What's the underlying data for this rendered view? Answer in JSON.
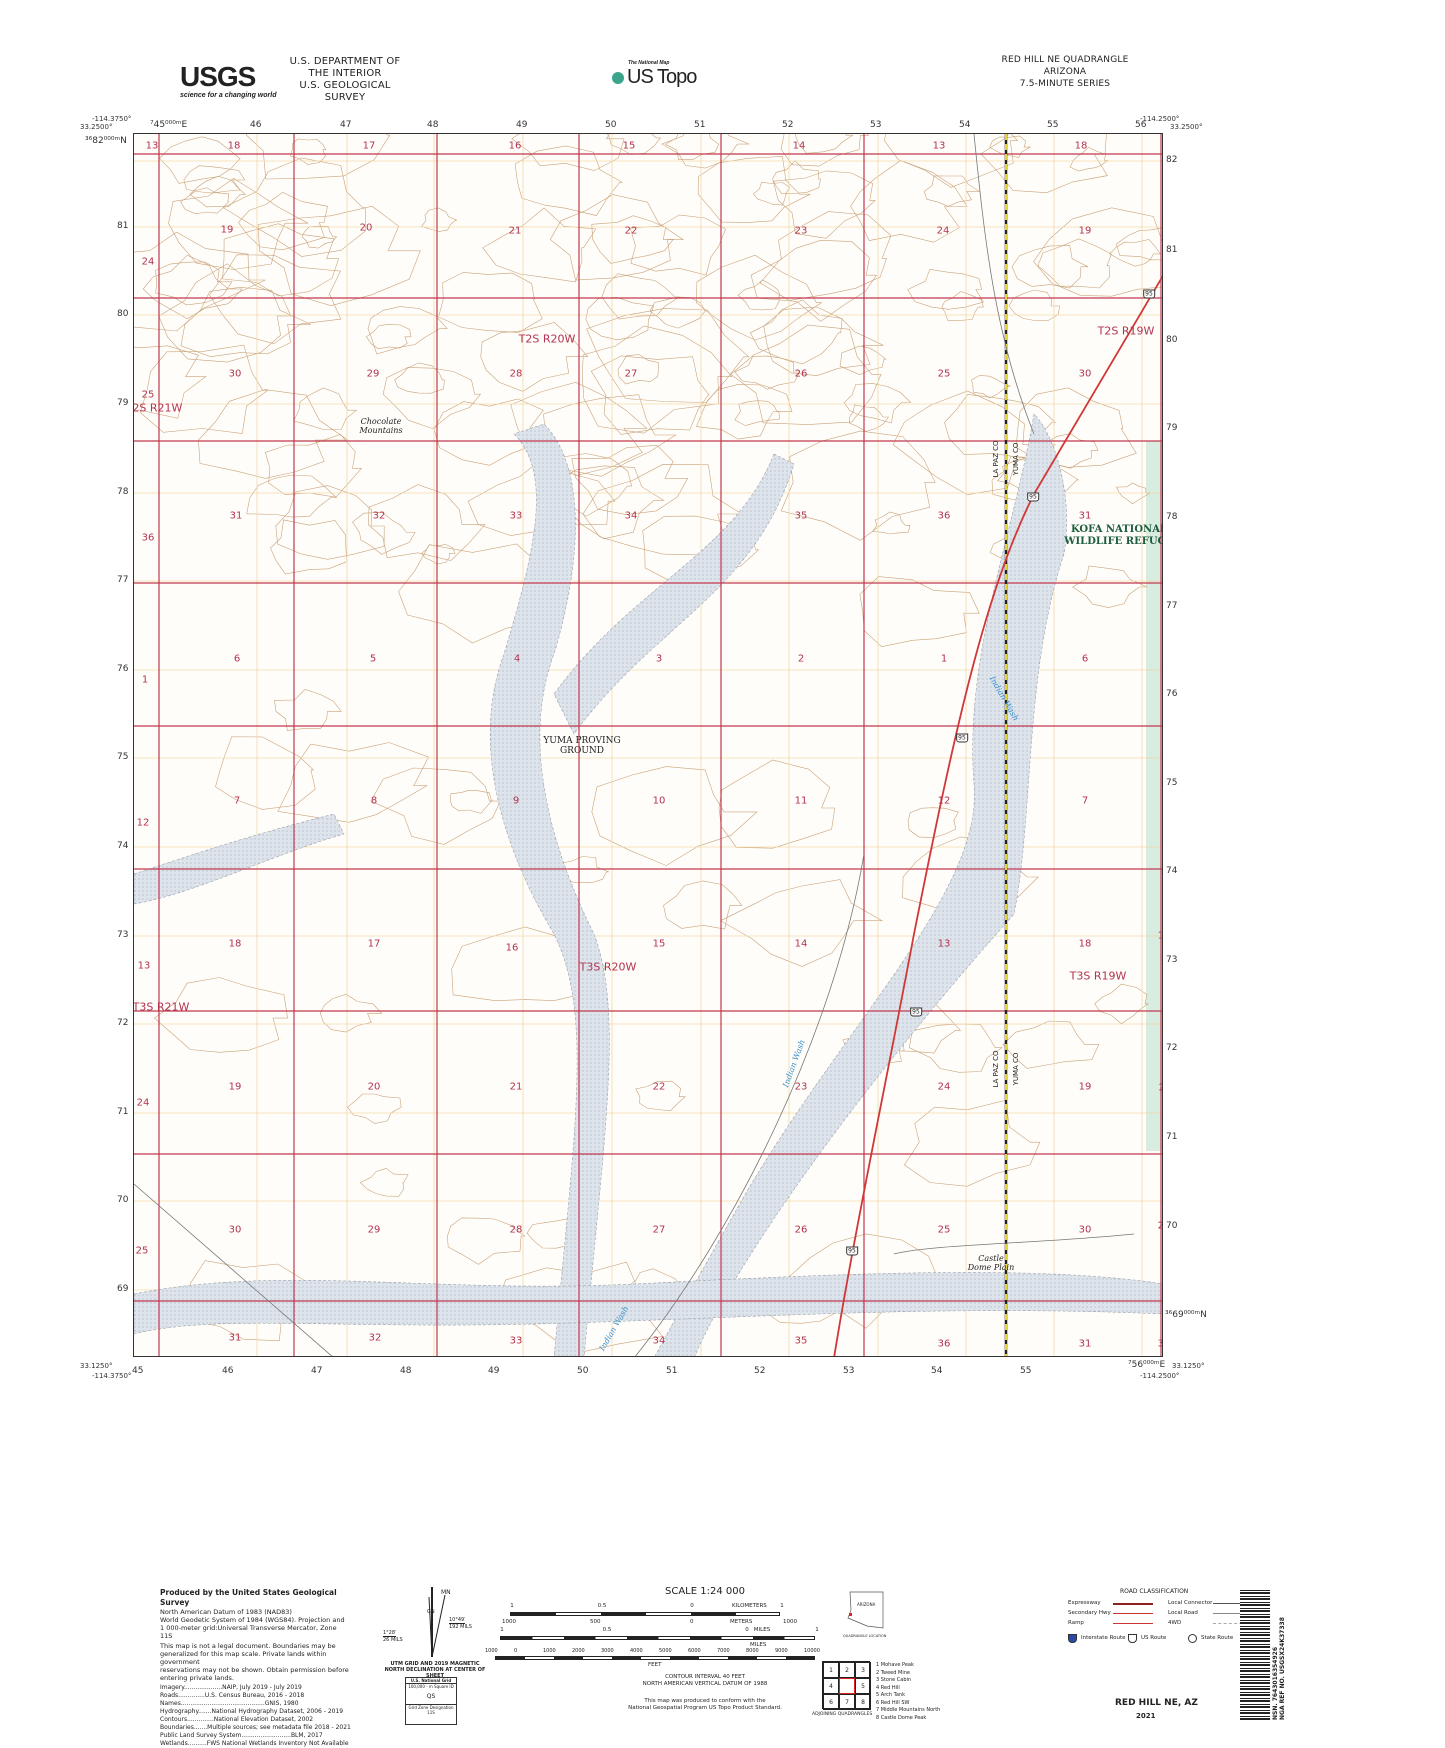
{
  "header": {
    "agency_logo": "USGS",
    "agency_tagline": "science for a changing world",
    "dept_line1": "U.S. DEPARTMENT OF THE INTERIOR",
    "dept_line2": "U.S. GEOLOGICAL SURVEY",
    "national_map": "The National Map",
    "us_topo": "US Topo",
    "quad_title": "RED HILL NE QUADRANGLE",
    "state": "ARIZONA",
    "series": "7.5-MINUTE SERIES"
  },
  "corners": {
    "tl_lon": "-114.3750°",
    "tl_lat": "33.2500°",
    "tr_lon": "-114.2500°",
    "tr_lat": "33.2500°",
    "bl_lat": "33.1250°",
    "bl_lon": "-114.3750°",
    "br_lon": "-114.2500°",
    "br_lat": "33.1250°"
  },
  "grid": {
    "easting_first": "⁷45⁰⁰⁰ᵐE",
    "easting_last": "⁷56⁰⁰⁰ᵐE",
    "northing_first": "³⁶82⁰⁰⁰ᵐN",
    "northing_last": "³⁶69⁰⁰⁰ᵐN",
    "eastings": [
      "46",
      "47",
      "48",
      "49",
      "50",
      "51",
      "52",
      "53",
      "54",
      "55",
      "56"
    ],
    "eastings_bottom": [
      "45",
      "46",
      "47",
      "48",
      "49",
      "50",
      "51",
      "52",
      "53",
      "54",
      "55"
    ],
    "northings_left": [
      "81",
      "80",
      "79",
      "78",
      "77",
      "76",
      "75",
      "74",
      "73",
      "72",
      "71",
      "70",
      "69"
    ],
    "northings_right": [
      "82",
      "81",
      "80",
      "79",
      "78",
      "77",
      "76",
      "75",
      "74",
      "73",
      "72",
      "71",
      "70"
    ]
  },
  "sections": [
    "13",
    "18",
    "17",
    "16",
    "15",
    "14",
    "13",
    "18",
    "24",
    "19",
    "20",
    "21",
    "22",
    "23",
    "24",
    "19",
    "25",
    "30",
    "29",
    "28",
    "27",
    "26",
    "25",
    "30",
    "36",
    "31",
    "32",
    "33",
    "34",
    "35",
    "36",
    "31",
    "1",
    "6",
    "5",
    "4",
    "3",
    "2",
    "1",
    "6",
    "12",
    "7",
    "8",
    "9",
    "10",
    "11",
    "12",
    "7",
    "8",
    "13",
    "18",
    "17",
    "16",
    "15",
    "14",
    "13",
    "18",
    "17",
    "24",
    "19",
    "20",
    "21",
    "22",
    "23",
    "24",
    "19",
    "20",
    "25",
    "30",
    "29",
    "28",
    "27",
    "26",
    "25",
    "30",
    "29",
    "31",
    "32",
    "33",
    "34",
    "35",
    "36",
    "31",
    "32"
  ],
  "townships": [
    "T2S R20W",
    "T2S R19W",
    "T2S R21W",
    "T3S R20W",
    "T3S R19W",
    "T3S R21W"
  ],
  "places": {
    "chocolate": "Chocolate Mountains",
    "ypg": "YUMA PROVING GROUND",
    "kofa": "KOFA NATIONAL WILDLIFE REFUGE",
    "castle": "Castle Dome Plain",
    "indian_wash": "Indian Wash",
    "county_a": "LA PAZ CO",
    "county_b": "YUMA CO",
    "route": "95"
  },
  "colors": {
    "section_line": "#c0384f",
    "contour": "#c9a37a",
    "grid": "#f0d9a8",
    "wash": "#dde4ec",
    "refuge": "#d8ecdf",
    "highway": "#d03838"
  },
  "footer": {
    "produced": "Produced by the United States Geological Survey",
    "datum": [
      "North American Datum of 1983 (NAD83)",
      "World Geodetic System of 1984 (WGS84). Projection and",
      "1 000-meter grid:Universal Transverse Mercator, Zone 11S"
    ],
    "legal": [
      "This map is not a legal document. Boundaries may be",
      "generalized for this map scale. Private lands within government",
      "reservations may not be shown. Obtain permission before",
      "entering private lands."
    ],
    "sources": [
      "Imagery....................NAIP, July 2019 - July 2019",
      "Roads..............U.S. Census Bureau, 2016 - 2018",
      "Names............................................GNIS, 1980",
      "Hydrography.......National Hydrography Dataset, 2006 - 2019",
      "Contours..............National Elevation Dataset, 2002",
      "Boundaries.......Multiple sources; see metadata file 2018 - 2021",
      "Public Land Survey System..........................BLM, 2017",
      "Wetlands..........FWS National Wetlands Inventory Not Available"
    ],
    "decl": {
      "mn": "MN",
      "gn": "GN",
      "angle1": "10°49′",
      "mils1": "192 MILS",
      "angle2": "1°28′",
      "mils2": "26 MILS",
      "caption": "UTM GRID AND 2019 MAGNETIC NORTH DECLINATION AT CENTER OF SHEET"
    },
    "usng": {
      "title": "U.S. National Grid",
      "square": "100,000 - m Square ID",
      "id": "QS",
      "zone_label": "Grid Zone Designation",
      "zone": "11S"
    },
    "scale": {
      "title": "SCALE 1:24 000",
      "km": [
        "1",
        "0.5",
        "0",
        "KILOMETERS",
        "1",
        "2"
      ],
      "m": [
        "1000",
        "500",
        "0",
        "METERS",
        "1000",
        "2000"
      ],
      "mi": [
        "1",
        "0.5",
        "0",
        "MILES",
        "1"
      ],
      "ft": [
        "1000",
        "0",
        "1000",
        "2000",
        "3000",
        "4000",
        "5000",
        "6000",
        "7000",
        "8000",
        "9000",
        "10000"
      ],
      "ft_label": "FEET"
    },
    "contour": [
      "CONTOUR INTERVAL 40 FEET",
      "NORTH AMERICAN VERTICAL DATUM OF 1988"
    ],
    "standard": [
      "This map was produced to conform with the",
      "National Geospatial Program US Topo Product Standard."
    ],
    "location": {
      "state": "ARIZONA",
      "caption": "QUADRANGLE LOCATION"
    },
    "adjoining": {
      "cells": [
        "1",
        "2",
        "3",
        "4",
        "",
        "5",
        "6",
        "7",
        "8"
      ],
      "caption": "ADJOINING QUADRANGLES",
      "names": [
        "1 Mohave Peak",
        "2 Tweed Mine",
        "3 Stone Cabin",
        "4 Red Hill",
        "5 Arch Tank",
        "6 Red Hill SW",
        "7 Middle Mountains North",
        "8 Castle Dome Peak"
      ]
    },
    "roads": {
      "title": "ROAD CLASSIFICATION",
      "items": [
        "Expressway",
        "Secondary Hwy",
        "Ramp",
        "Local Connector",
        "Local Road",
        "4WD"
      ],
      "shields": [
        "Interstate Route",
        "US Route",
        "State Route"
      ]
    },
    "barcode": {
      "nsn": "NSN. 7643016354926",
      "ref": "NGA REF NO. USGSX24K37338"
    },
    "name": "RED HILL NE, AZ",
    "year": "2021"
  }
}
